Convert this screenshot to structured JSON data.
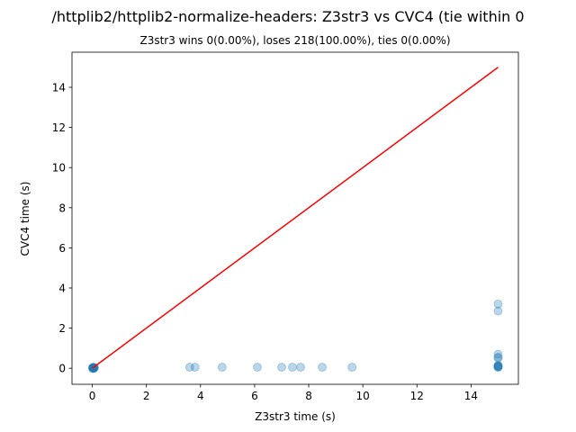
{
  "chart_data": {
    "type": "scatter",
    "title": "/httplib2/httplib2-normalize-headers: Z3str3 vs CVC4 (tie within 0",
    "subtitle": "Z3str3 wins 0(0.00%), loses 218(100.00%), ties 0(0.00%)",
    "xlabel": "Z3str3 time (s)",
    "ylabel": "CVC4 time (s)",
    "xlim": [
      -0.75,
      15.75
    ],
    "ylim": [
      -0.8,
      15.75
    ],
    "xticks": [
      0,
      2,
      4,
      6,
      8,
      10,
      12,
      14
    ],
    "yticks": [
      0,
      2,
      4,
      6,
      8,
      10,
      12,
      14
    ],
    "point_color": "#1f77b4",
    "line_color": "#ff0000",
    "diagonal": [
      [
        0,
        0
      ],
      [
        15,
        15
      ]
    ],
    "points": [
      {
        "x": 0.02,
        "y": 0.01
      },
      {
        "x": 0.03,
        "y": 0.02
      },
      {
        "x": 0.05,
        "y": 0.0
      },
      {
        "x": 0.04,
        "y": 0.03
      },
      {
        "x": 0.06,
        "y": 0.02
      },
      {
        "x": 0.01,
        "y": 0.01
      },
      {
        "x": 0.08,
        "y": 0.02
      },
      {
        "x": 0.03,
        "y": -0.02
      },
      {
        "x": 0.07,
        "y": 0.04
      },
      {
        "x": 0.02,
        "y": 0.05
      },
      {
        "x": 3.6,
        "y": 0.05
      },
      {
        "x": 3.8,
        "y": 0.05
      },
      {
        "x": 4.8,
        "y": 0.05
      },
      {
        "x": 6.1,
        "y": 0.05
      },
      {
        "x": 7.0,
        "y": 0.05
      },
      {
        "x": 7.4,
        "y": 0.05
      },
      {
        "x": 7.7,
        "y": 0.05
      },
      {
        "x": 8.5,
        "y": 0.05
      },
      {
        "x": 9.6,
        "y": 0.05
      },
      {
        "x": 15.0,
        "y": 3.2
      },
      {
        "x": 15.0,
        "y": 2.85
      },
      {
        "x": 15.0,
        "y": 0.7
      },
      {
        "x": 15.0,
        "y": 0.55
      },
      {
        "x": 15.0,
        "y": 0.5
      },
      {
        "x": 15.0,
        "y": 0.15
      },
      {
        "x": 15.0,
        "y": 0.12
      },
      {
        "x": 15.0,
        "y": 0.1
      },
      {
        "x": 15.0,
        "y": 0.08
      },
      {
        "x": 15.0,
        "y": 0.06
      },
      {
        "x": 15.0,
        "y": 0.05
      }
    ]
  }
}
